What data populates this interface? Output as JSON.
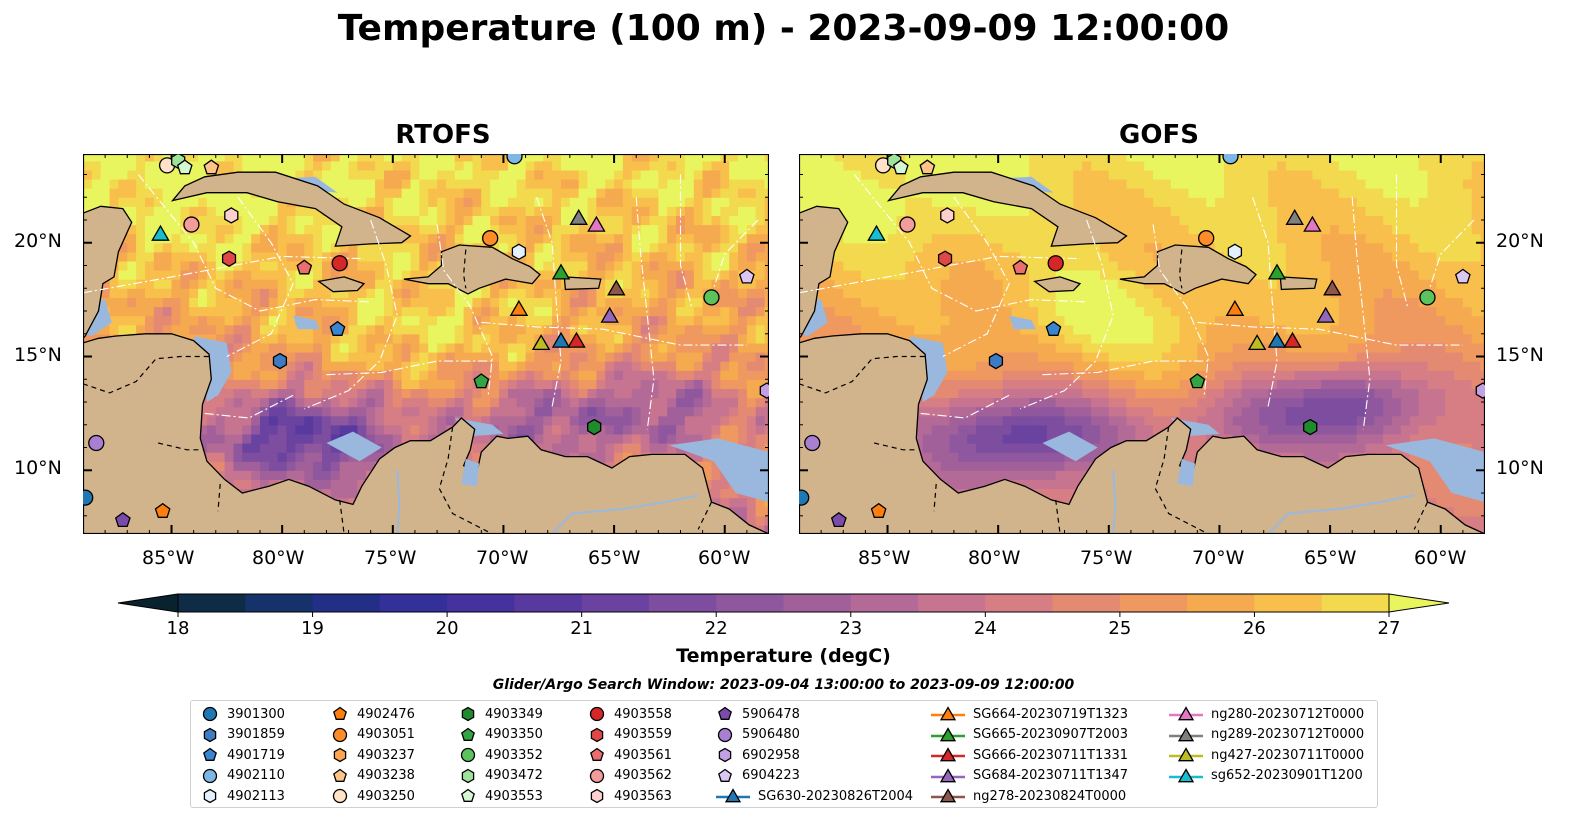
{
  "title": "Temperature (100 m) - 2023-09-09 12:00:00",
  "panels": [
    {
      "name": "RTOFS"
    },
    {
      "name": "GOFS"
    }
  ],
  "lat_labels": [
    "20°N",
    "15°N",
    "10°N"
  ],
  "lon_labels": [
    "85°W",
    "80°W",
    "75°W",
    "70°W",
    "65°W",
    "60°W"
  ],
  "colorbar": {
    "label": "Temperature (degC)",
    "min": 18,
    "max": 27,
    "step": 0.5,
    "ticks": [
      "18",
      "19",
      "20",
      "21",
      "22",
      "23",
      "24",
      "25",
      "26",
      "27"
    ],
    "colormap": [
      "#08222e",
      "#0e2c45",
      "#16326a",
      "#232f86",
      "#33309a",
      "#45329e",
      "#58399f",
      "#6a43a0",
      "#7d4d9f",
      "#8f579e",
      "#a2609b",
      "#b46a97",
      "#c67490",
      "#d77e84",
      "#e58a72",
      "#ef985f",
      "#f5aa50",
      "#f8bf4c",
      "#f3d94e",
      "#e9f55e"
    ]
  },
  "colors": {
    "land": "#d2b48c",
    "shelf": "#9ab8de",
    "deep": "#06222f"
  },
  "search_window": "Glider/Argo Search Window: 2023-09-04 13:00:00 to 2023-09-09 12:00:00",
  "legend": [
    {
      "label": "3901300",
      "marker": "circle",
      "color": "#1f77b4"
    },
    {
      "label": "3901859",
      "marker": "hexagon",
      "color": "#3d7cc4"
    },
    {
      "label": "4901719",
      "marker": "pentagon",
      "color": "#3a85d0"
    },
    {
      "label": "4902110",
      "marker": "circle",
      "color": "#7db7e6"
    },
    {
      "label": "4902113",
      "marker": "hexagon",
      "color": "#e3f1ff"
    },
    {
      "label": "4902476",
      "marker": "pentagon",
      "color": "#ff7f0e"
    },
    {
      "label": "4903051",
      "marker": "circle",
      "color": "#ff8c2b"
    },
    {
      "label": "4903237",
      "marker": "hexagon",
      "color": "#ffa552"
    },
    {
      "label": "4903238",
      "marker": "pentagon",
      "color": "#ffc488"
    },
    {
      "label": "4903250",
      "marker": "circle",
      "color": "#ffe2c8"
    },
    {
      "label": "4903349",
      "marker": "hexagon",
      "color": "#1f8b2c"
    },
    {
      "label": "4903350",
      "marker": "pentagon",
      "color": "#32a442"
    },
    {
      "label": "4903352",
      "marker": "circle",
      "color": "#5cc25d"
    },
    {
      "label": "4903472",
      "marker": "hexagon",
      "color": "#9ee39a"
    },
    {
      "label": "4903553",
      "marker": "pentagon",
      "color": "#d4f8cf"
    },
    {
      "label": "4903558",
      "marker": "circle",
      "color": "#d62728"
    },
    {
      "label": "4903559",
      "marker": "hexagon",
      "color": "#e04848"
    },
    {
      "label": "4903561",
      "marker": "pentagon",
      "color": "#ea6e6e"
    },
    {
      "label": "4903562",
      "marker": "circle",
      "color": "#f29c9c"
    },
    {
      "label": "4903563",
      "marker": "hexagon",
      "color": "#fcd0cc"
    },
    {
      "label": "5906478",
      "marker": "pentagon",
      "color": "#7b4bab"
    },
    {
      "label": "5906480",
      "marker": "circle",
      "color": "#a87fd1"
    },
    {
      "label": "6902958",
      "marker": "hexagon",
      "color": "#c2a0e3"
    },
    {
      "label": "6904223",
      "marker": "pentagon",
      "color": "#dcc6f4"
    },
    {
      "label": "SG630-20230826T2004",
      "marker": "triangle-line",
      "color": "#1f77b4"
    },
    {
      "label": "SG664-20230719T1323",
      "marker": "triangle-line",
      "color": "#ff7f0e"
    },
    {
      "label": "SG665-20230907T2003",
      "marker": "triangle-line",
      "color": "#2ca02c"
    },
    {
      "label": "SG666-20230711T1331",
      "marker": "triangle-line",
      "color": "#d62728"
    },
    {
      "label": "SG684-20230711T1347",
      "marker": "triangle-line",
      "color": "#9467bd"
    },
    {
      "label": "ng278-20230824T0000",
      "marker": "triangle-line",
      "color": "#8c564b"
    },
    {
      "label": "ng280-20230712T0000",
      "marker": "triangle-line",
      "color": "#e377c2"
    },
    {
      "label": "ng289-20230712T0000",
      "marker": "triangle-line",
      "color": "#7f7f7f"
    },
    {
      "label": "ng427-20230711T0000",
      "marker": "triangle-line",
      "color": "#bcbd22"
    },
    {
      "label": "sg652-20230901T1200",
      "marker": "triangle-line",
      "color": "#17becf"
    }
  ],
  "platform_positions": [
    {
      "id": "3901300",
      "lon": -88.9,
      "lat": 8.8
    },
    {
      "id": "4902476",
      "lon": -85.4,
      "lat": 8.2
    },
    {
      "id": "5906478",
      "lon": -87.2,
      "lat": 7.8
    },
    {
      "id": "5906480",
      "lon": -88.4,
      "lat": 11.2
    },
    {
      "id": "4903250",
      "lon": -85.2,
      "lat": 23.4
    },
    {
      "id": "4903472",
      "lon": -84.7,
      "lat": 23.6
    },
    {
      "id": "4903553",
      "lon": -84.4,
      "lat": 23.3
    },
    {
      "id": "4903238",
      "lon": -83.2,
      "lat": 23.3
    },
    {
      "id": "4903562",
      "lon": -84.1,
      "lat": 20.8
    },
    {
      "id": "4903563",
      "lon": -82.3,
      "lat": 21.2
    },
    {
      "id": "sg652-20230901T1200",
      "lon": -85.5,
      "lat": 20.4
    },
    {
      "id": "4903559",
      "lon": -82.4,
      "lat": 19.3
    },
    {
      "id": "4903561",
      "lon": -79.0,
      "lat": 18.9
    },
    {
      "id": "4903558",
      "lon": -77.4,
      "lat": 19.1
    },
    {
      "id": "4901719",
      "lon": -77.5,
      "lat": 16.2
    },
    {
      "id": "3901859",
      "lon": -80.1,
      "lat": 14.8
    },
    {
      "id": "4903051",
      "lon": -70.6,
      "lat": 20.2
    },
    {
      "id": "4902113",
      "lon": -69.3,
      "lat": 19.6
    },
    {
      "id": "ng289-20230712T0000",
      "lon": -66.6,
      "lat": 21.1
    },
    {
      "id": "ng280-20230712T0000",
      "lon": -65.8,
      "lat": 20.8
    },
    {
      "id": "SG665-20230907T2003",
      "lon": -67.4,
      "lat": 18.7
    },
    {
      "id": "ng278-20230824T0000",
      "lon": -64.9,
      "lat": 18.0
    },
    {
      "id": "SG664-20230719T1323",
      "lon": -69.3,
      "lat": 17.1
    },
    {
      "id": "SG684-20230711T1347",
      "lon": -65.2,
      "lat": 16.8
    },
    {
      "id": "ng427-20230711T0000",
      "lon": -68.3,
      "lat": 15.6
    },
    {
      "id": "SG630-20230826T2004",
      "lon": -67.4,
      "lat": 15.7
    },
    {
      "id": "SG666-20230711T1331",
      "lon": -66.7,
      "lat": 15.7
    },
    {
      "id": "4903350",
      "lon": -71.0,
      "lat": 13.9
    },
    {
      "id": "4903349",
      "lon": -65.9,
      "lat": 11.9
    },
    {
      "id": "4903352",
      "lon": -60.6,
      "lat": 17.6
    },
    {
      "id": "6904223",
      "lon": -59.0,
      "lat": 18.5
    },
    {
      "id": "6902958",
      "lon": -58.1,
      "lat": 13.5
    },
    {
      "id": "4902110",
      "lon": -69.5,
      "lat": 23.8
    }
  ]
}
